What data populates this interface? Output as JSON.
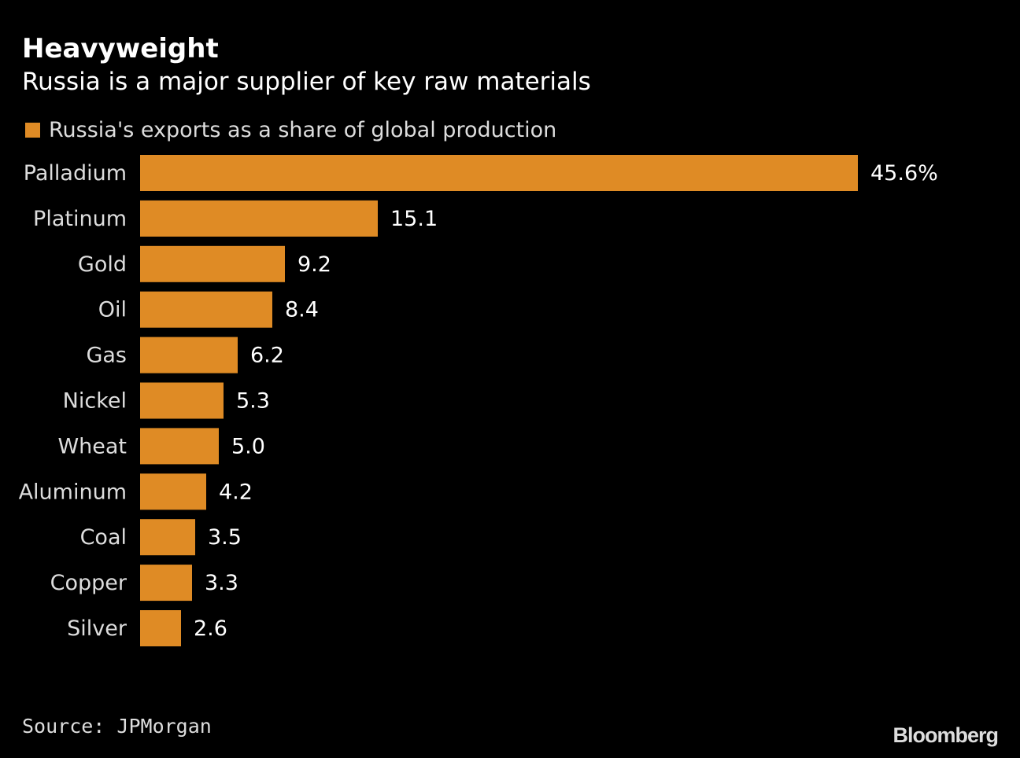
{
  "title": "Heavyweight",
  "subtitle": "Russia is a major supplier of key raw materials",
  "source": "Source: JPMorgan",
  "logo": "Bloomberg",
  "chart_data": {
    "type": "bar",
    "orientation": "horizontal",
    "categories": [
      "Palladium",
      "Platinum",
      "Gold",
      "Oil",
      "Gas",
      "Nickel",
      "Wheat",
      "Aluminum",
      "Coal",
      "Copper",
      "Silver"
    ],
    "series": [
      {
        "name": "Russia's exports as a share of global production",
        "values": [
          45.6,
          15.1,
          9.2,
          8.4,
          6.2,
          5.3,
          5.0,
          4.2,
          3.5,
          3.3,
          2.6
        ],
        "color": "#df8b25"
      }
    ],
    "data_labels": [
      "45.6%",
      "15.1",
      "9.2",
      "8.4",
      "6.2",
      "5.3",
      "5.0",
      "4.2",
      "3.5",
      "3.3",
      "2.6"
    ],
    "legend": "top-left",
    "grid": false
  }
}
